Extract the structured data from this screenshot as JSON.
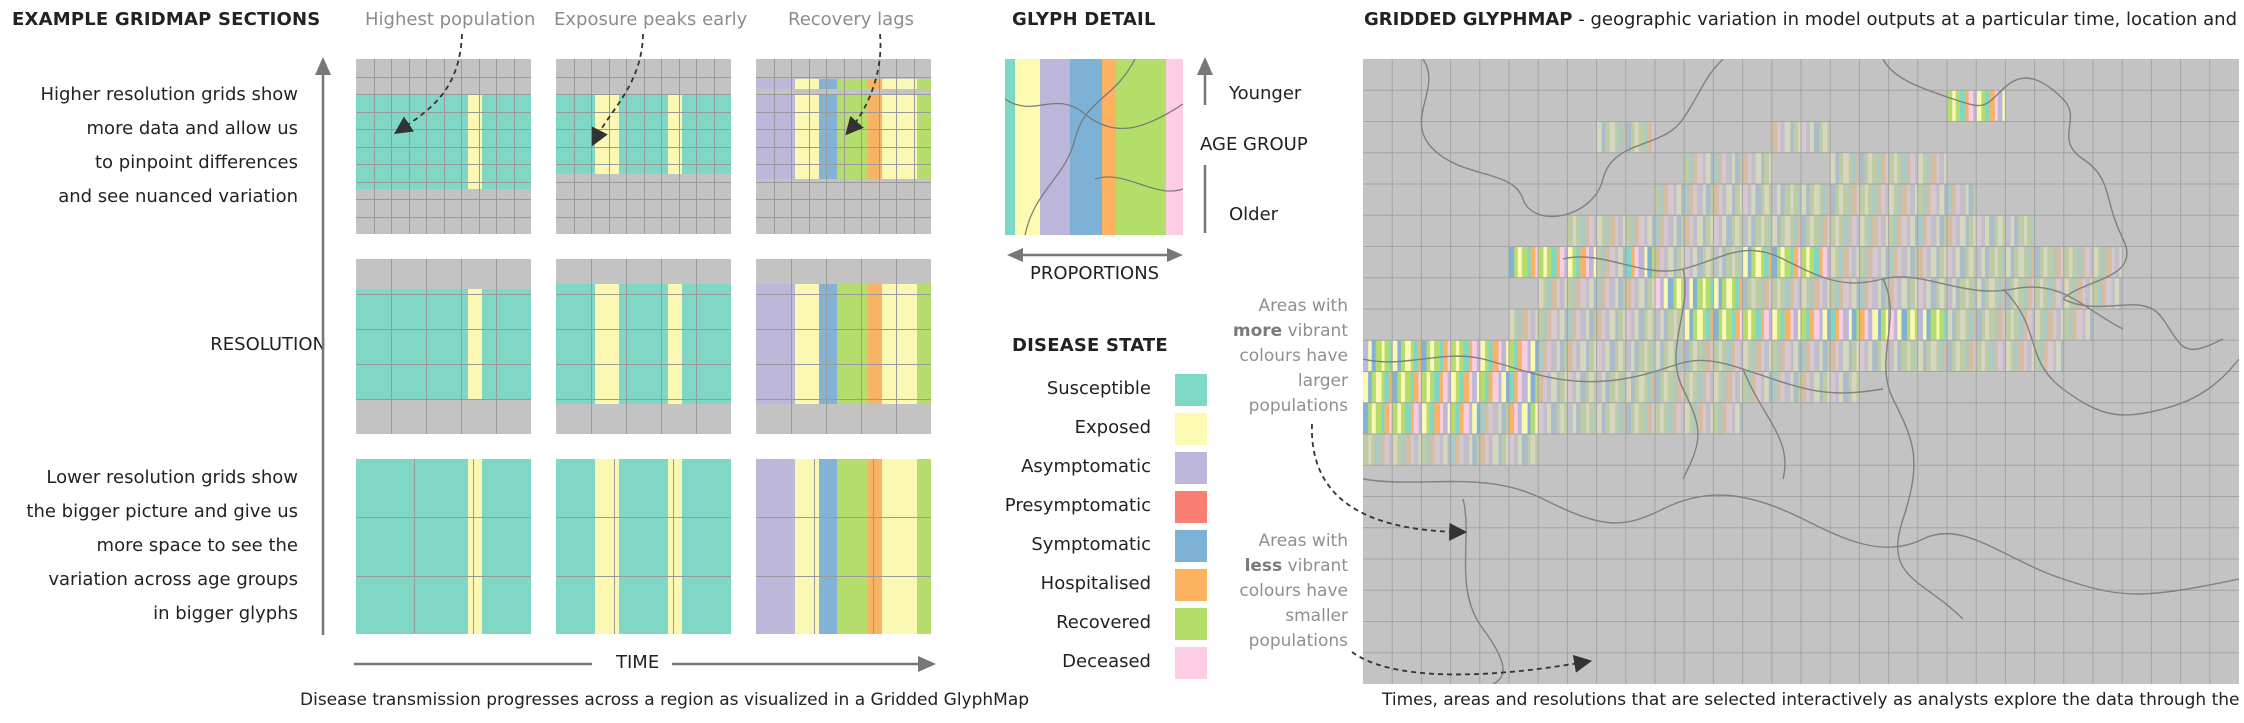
{
  "left": {
    "heading": "EXAMPLE GRIDMAP SECTIONS",
    "callouts": {
      "population": "Highest population",
      "exposure": "Exposure peaks early",
      "recovery": "Recovery lags"
    },
    "high_res_text": [
      "Higher resolution grids show",
      "more data and allow us",
      "to pinpoint differences",
      "and see nuanced variation"
    ],
    "resolution_label": "RESOLUTION",
    "low_res_text": [
      "Lower resolution grids show",
      "the bigger picture and give us",
      "more space to see the",
      "variation across age groups",
      "in bigger glyphs"
    ],
    "time_label": "TIME",
    "caption": "Disease transmission progresses across a region as visualized in a Gridded GlyphMap"
  },
  "glyph_detail": {
    "heading": "GLYPH DETAIL",
    "younger": "Younger",
    "age_group": "AGE GROUP",
    "older": "Older",
    "proportions": "PROPORTIONS"
  },
  "legend": {
    "heading": "DISEASE STATE",
    "items": [
      {
        "label": "Susceptible",
        "color": "#7dd8c6"
      },
      {
        "label": "Exposed",
        "color": "#fdfbb1"
      },
      {
        "label": "Asymptomatic",
        "color": "#bdb6db"
      },
      {
        "label": "Presymptomatic",
        "color": "#fa7e72"
      },
      {
        "label": "Symptomatic",
        "color": "#7eb1d6"
      },
      {
        "label": "Hospitalised",
        "color": "#fcb25f"
      },
      {
        "label": "Recovered",
        "color": "#b3de69"
      },
      {
        "label": "Deceased",
        "color": "#fdcde5"
      }
    ]
  },
  "map": {
    "heading_bold": "GRIDDED GLYPHMAP",
    "heading_rest": " - geographic variation in model outputs at a particular time, location and resolution.",
    "note_more": [
      "Areas with",
      "more",
      " vibrant",
      "colours have",
      "larger",
      "populations"
    ],
    "note_less": [
      "Areas with",
      "less",
      " vibrant",
      "colours have",
      "smaller",
      "populations"
    ],
    "caption": "Times, areas and resolutions that are selected interactively as analysts explore the data through the map."
  }
}
